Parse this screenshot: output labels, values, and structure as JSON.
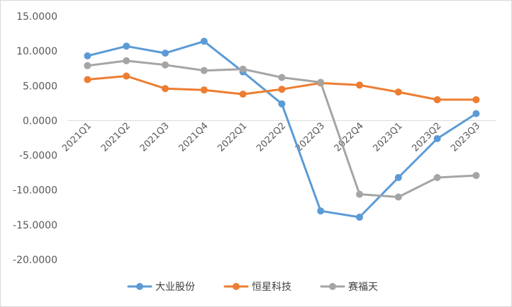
{
  "chart_data": {
    "type": "line",
    "title": "",
    "xlabel": "",
    "ylabel": "",
    "categories": [
      "2021Q1",
      "2021Q2",
      "2021Q3",
      "2021Q4",
      "2022Q1",
      "2022Q2",
      "2022Q3",
      "2022Q4",
      "2023Q1",
      "2023Q2",
      "2023Q3"
    ],
    "ylim": [
      -20,
      15
    ],
    "yticks": [
      15,
      10,
      5,
      0,
      -5,
      -10,
      -15,
      -20
    ],
    "ytick_labels": [
      "15.0000",
      "10.0000",
      "5.0000",
      "0.0000",
      "-5.0000",
      "-10.0000",
      "-15.0000",
      "-20.0000"
    ],
    "grid": false,
    "legend_position": "bottom",
    "series": [
      {
        "name": "大业股份",
        "color": "#5b9bd5",
        "values": [
          9.3,
          10.7,
          9.7,
          11.4,
          7.0,
          2.4,
          -13.0,
          -13.9,
          -8.2,
          -2.6,
          1.0
        ]
      },
      {
        "name": "恒星科技",
        "color": "#ed7d31",
        "values": [
          5.9,
          6.4,
          4.6,
          4.4,
          3.8,
          4.5,
          5.4,
          5.1,
          4.1,
          3.0,
          3.0
        ]
      },
      {
        "name": "赛福天",
        "color": "#a5a5a5",
        "values": [
          7.9,
          8.6,
          8.0,
          7.2,
          7.4,
          6.2,
          5.5,
          -10.6,
          -11.0,
          -8.2,
          -7.9
        ]
      }
    ]
  }
}
